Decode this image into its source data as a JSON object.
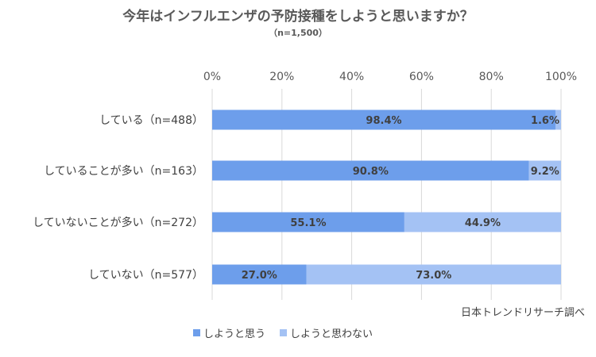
{
  "chart_data": {
    "type": "bar",
    "orientation": "horizontal",
    "stacked": true,
    "title": "今年はインフルエンザの予防接種をしようと思いますか？",
    "subtitle": "（n=1,500）",
    "xlim": [
      0,
      100
    ],
    "x_ticks": [
      "0%",
      "20%",
      "40%",
      "60%",
      "80%",
      "100%"
    ],
    "grid": true,
    "legend_position": "bottom",
    "categories": [
      "している（n=488）",
      "していることが多い（n=163）",
      "していないことが多い（n=272）",
      "していない（n=577）"
    ],
    "series": [
      {
        "name": "しようと思う",
        "color": "#6d9eeb",
        "values": [
          98.4,
          90.8,
          55.1,
          27.0
        ],
        "labels": [
          "98.4%",
          "90.8%",
          "55.1%",
          "27.0%"
        ]
      },
      {
        "name": "しようと思わない",
        "color": "#a4c2f4",
        "values": [
          1.6,
          9.2,
          44.9,
          73.0
        ],
        "labels": [
          "1.6%",
          "9.2%",
          "44.9%",
          "73.0%"
        ]
      }
    ],
    "source": "日本トレンドリサーチ調べ"
  }
}
